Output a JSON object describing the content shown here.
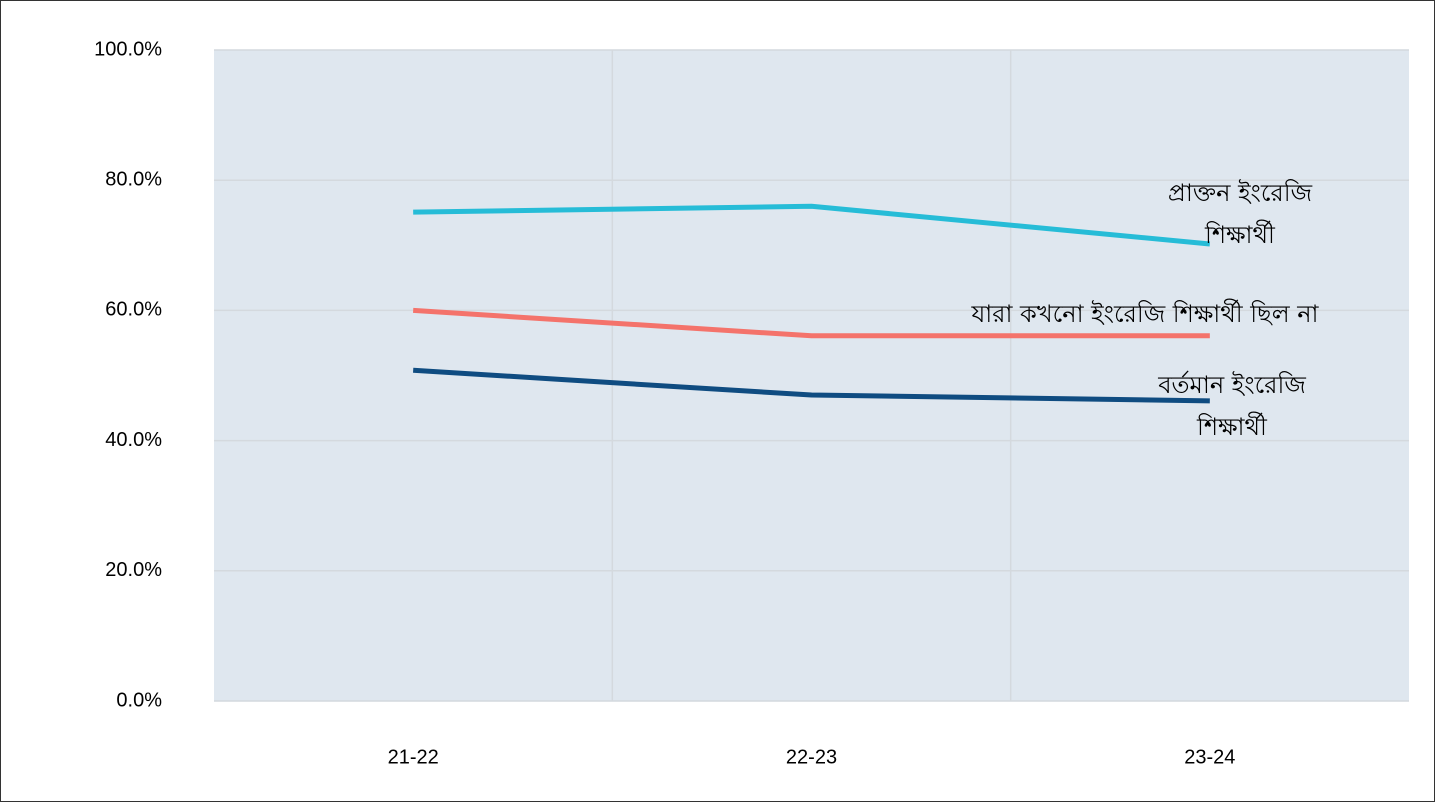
{
  "chart_data": {
    "type": "line",
    "categories": [
      "21-22",
      "22-23",
      "23-24"
    ],
    "series": [
      {
        "name": "প্রাক্তন ইংরেজি শিক্ষার্থী",
        "color": "#26bcd7",
        "values": [
          75.1,
          76.0,
          70.2
        ]
      },
      {
        "name": "যারা কখনো ইংরেজি শিক্ষার্থী ছিল না",
        "color": "#f4736b",
        "values": [
          60.0,
          56.1,
          56.1
        ]
      },
      {
        "name": "বর্তমান ইংরেজি শিক্ষার্থী",
        "color": "#0f4c81",
        "values": [
          50.8,
          47.0,
          46.1
        ]
      }
    ],
    "ylim": [
      0,
      100
    ],
    "yticks": [
      {
        "value": 0,
        "label": "0.0%"
      },
      {
        "value": 20,
        "label": "20.0%"
      },
      {
        "value": 40,
        "label": "40.0%"
      },
      {
        "value": 60,
        "label": "60.0%"
      },
      {
        "value": 80,
        "label": "80.0%"
      },
      {
        "value": 100,
        "label": "100.0%"
      }
    ],
    "grid": true
  }
}
